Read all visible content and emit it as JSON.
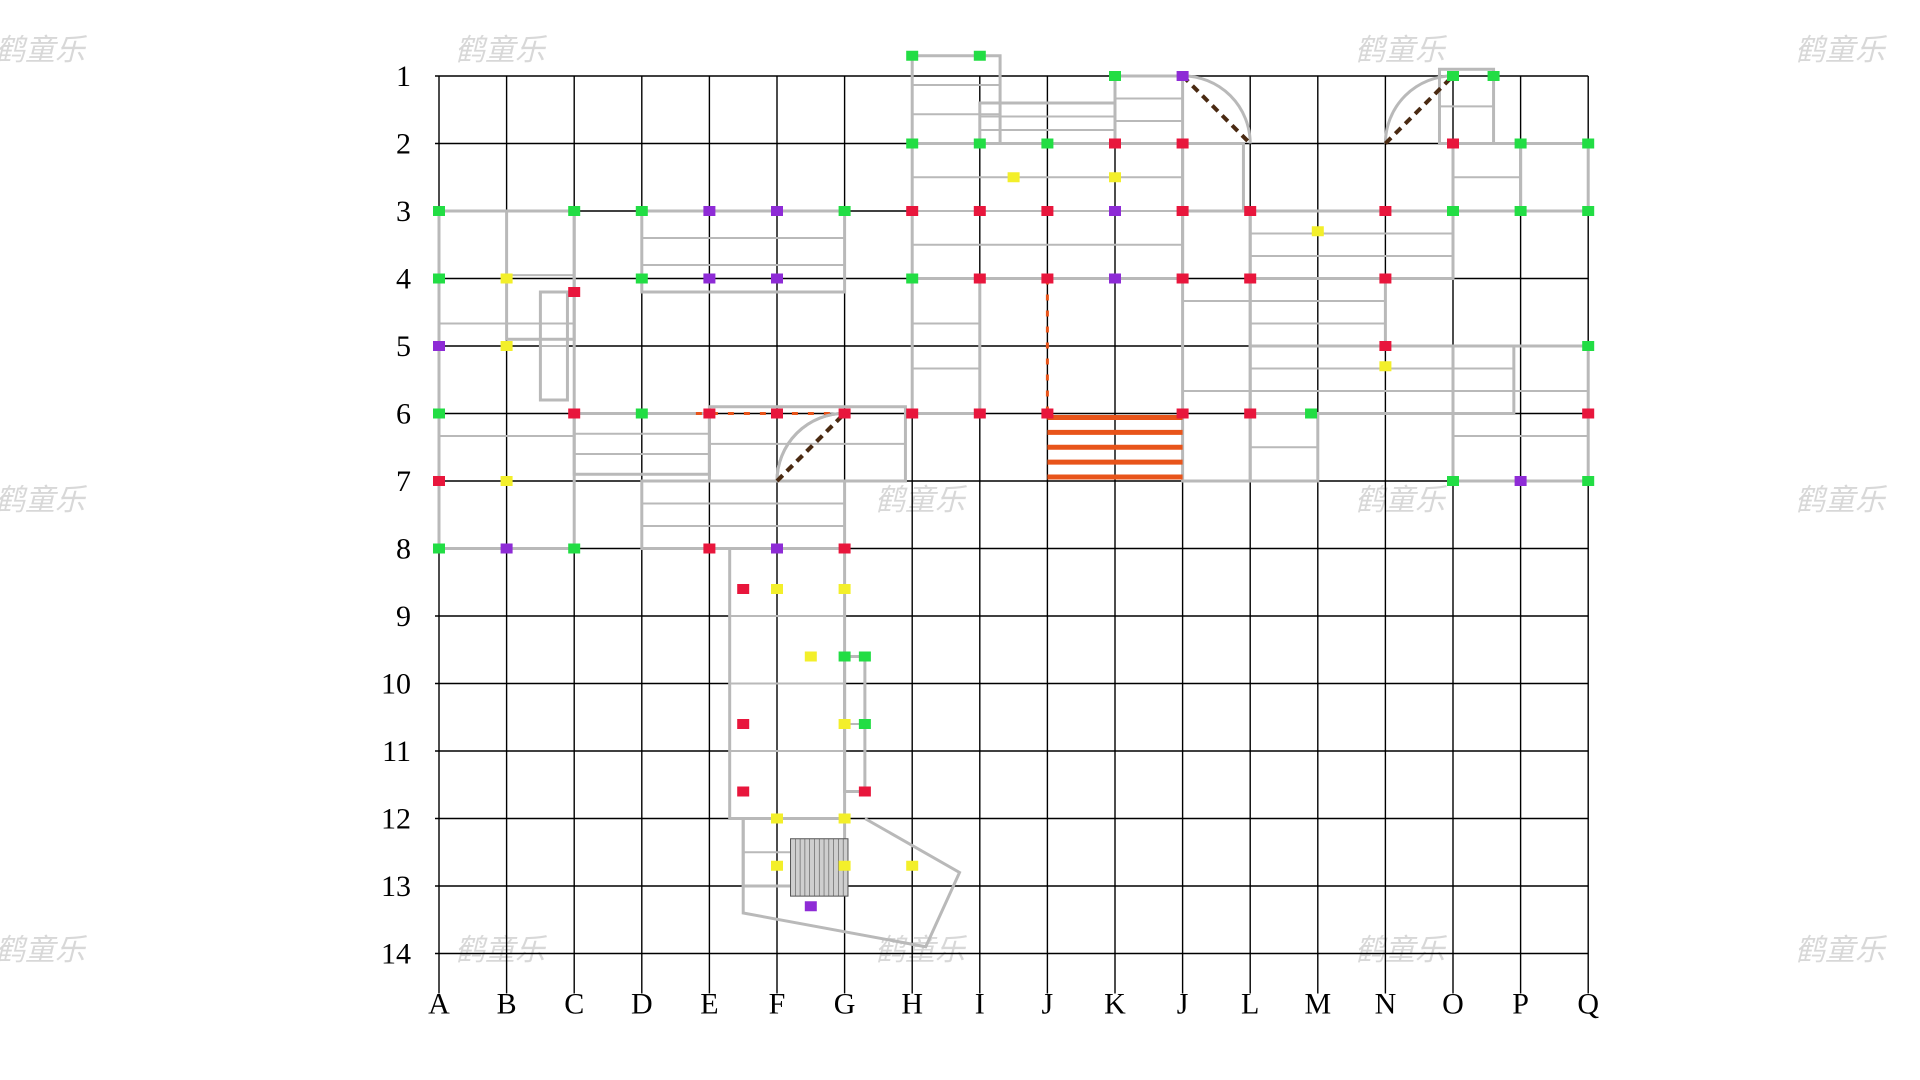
{
  "diagram": {
    "title": "",
    "row_labels": [
      "1",
      "2",
      "3",
      "4",
      "5",
      "6",
      "7",
      "8",
      "9",
      "10",
      "11",
      "12",
      "13",
      "14"
    ],
    "column_labels": [
      "A",
      "B",
      "C",
      "D",
      "E",
      "F",
      "G",
      "H",
      "I",
      "J",
      "K",
      "J",
      "L",
      "M",
      "N",
      "O",
      "P",
      "Q"
    ],
    "watermark_text": "鹤童乐",
    "colors": {
      "grid_line": "#000000",
      "frame": "#b9b9b9",
      "connector_green": "#22dd44",
      "connector_red": "#e8163c",
      "connector_yellow": "#f3ef2a",
      "connector_purple": "#8e2bd6",
      "bridge_orange": "#e8541a",
      "slide_brown": "#4a2a12",
      "net_grey": "#555555"
    },
    "legend": []
  }
}
